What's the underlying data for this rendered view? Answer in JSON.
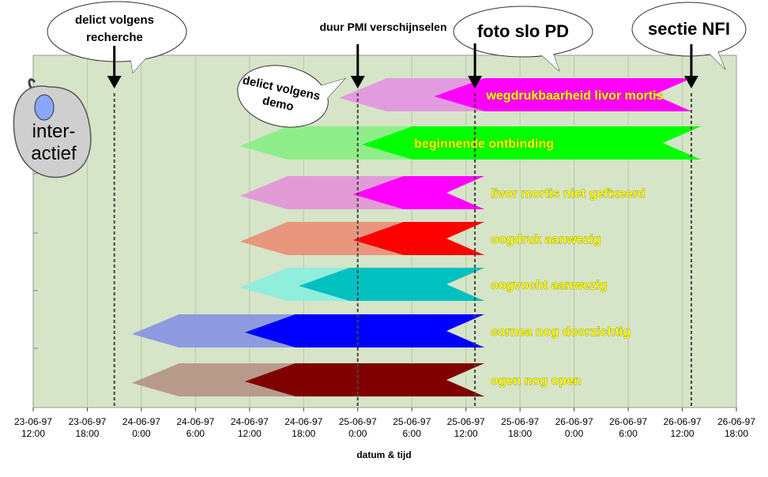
{
  "chart_data": {
    "type": "bar",
    "title": "",
    "xlabel": "datum & tijd",
    "ylabel": "",
    "x_tick_labels": [
      [
        "23-06-97",
        "12:00"
      ],
      [
        "23-06-97",
        "18:00"
      ],
      [
        "24-06-97",
        "0:00"
      ],
      [
        "24-06-97",
        "6:00"
      ],
      [
        "24-06-97",
        "12:00"
      ],
      [
        "24-06-97",
        "18:00"
      ],
      [
        "25-06-97",
        "0:00"
      ],
      [
        "25-06-97",
        "6:00"
      ],
      [
        "25-06-97",
        "12:00"
      ],
      [
        "25-06-97",
        "18:00"
      ],
      [
        "26-06-97",
        "0:00"
      ],
      [
        "26-06-97",
        "6:00"
      ],
      [
        "26-06-97",
        "12:00"
      ],
      [
        "26-06-97",
        "18:00"
      ]
    ],
    "xlim": [
      "1997-06-23 12:00",
      "1997-06-26 18:00"
    ],
    "grid": true,
    "series": [
      {
        "label": "wegdrukbaarheid livor mortis",
        "outer_start": "1997-06-24 23:00",
        "inner_start": "1997-06-25 09:00",
        "end": "1997-06-26 12:00",
        "light": "#e39be0",
        "dark": "#ff00ff"
      },
      {
        "label": "beginnende ontbinding",
        "outer_start": "1997-06-24 12:00",
        "inner_start": "1997-06-25 01:00",
        "end": "1997-06-26 13:00",
        "light": "#90ee8a",
        "dark": "#00ff00"
      },
      {
        "label": "livor mortis niet gefixeerd",
        "outer_start": "1997-06-24 12:00",
        "inner_start": "1997-06-25 00:00",
        "end": "1997-06-25 13:00",
        "light": "#e39bd8",
        "dark": "#ff00ff"
      },
      {
        "label": "oogdruk aanwezig",
        "outer_start": "1997-06-24 12:00",
        "inner_start": "1997-06-25 00:00",
        "end": "1997-06-25 13:00",
        "light": "#e8967e",
        "dark": "#ff0000"
      },
      {
        "label": "oogvocht aanwezig",
        "outer_start": "1997-06-24 12:00",
        "inner_start": "1997-06-24 18:00",
        "end": "1997-06-25 13:00",
        "light": "#90eedc",
        "dark": "#00c0c0"
      },
      {
        "label": "cornea nog doorzichtig",
        "outer_start": "1997-06-24 00:00",
        "inner_start": "1997-06-24 12:00",
        "end": "1997-06-25 13:00",
        "light": "#8e9ae0",
        "dark": "#0000ff"
      },
      {
        "label": "ogen nog open",
        "outer_start": "1997-06-24 00:00",
        "inner_start": "1997-06-24 12:00",
        "end": "1997-06-25 13:00",
        "light": "#b89a8a",
        "dark": "#800000"
      }
    ],
    "markers": [
      {
        "label": "delict volgens recherche",
        "time": "1997-06-23 21:00"
      },
      {
        "label": "duur PMI verschijnselen",
        "time": "1997-06-25 00:00"
      },
      {
        "label": "foto slo PD",
        "time": "1997-06-25 13:00"
      },
      {
        "label": "sectie NFI",
        "time": "1997-06-26 13:00"
      }
    ],
    "annotations": [
      "delict volgens demo"
    ]
  },
  "callouts": {
    "recherche": [
      "delict volgens",
      "recherche"
    ],
    "pmi": "duur PMI verschijnselen",
    "foto": "foto slo PD",
    "sectie": "sectie NFI",
    "demo": [
      "delict volgens",
      "demo"
    ]
  },
  "mouse_button": {
    "label_lines": [
      "inter-",
      "actief"
    ],
    "icon": "mouse-icon"
  },
  "colors": {
    "plot_background": "#d6e4c8",
    "grid": "#b8c8a8",
    "marker_line": "#444444",
    "label_text": "#ffff00"
  }
}
